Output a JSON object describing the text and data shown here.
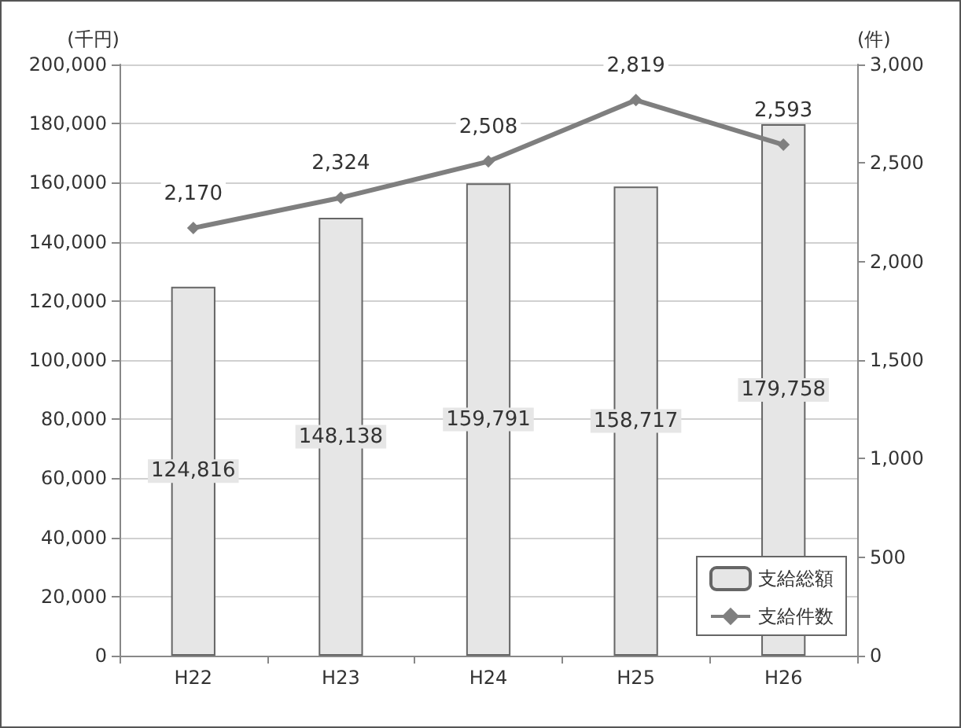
{
  "chart_data": {
    "type": "bar",
    "categories": [
      "H22",
      "H23",
      "H24",
      "H25",
      "H26"
    ],
    "ylabel": "(千円)",
    "y2label": "(件)",
    "series": [
      {
        "name": "支給総額",
        "color": "#e6e6e6",
        "values": [
          124816,
          148138,
          159791,
          158717,
          179758
        ],
        "value_labels": [
          "124,816",
          "148,138",
          "159,791",
          "158,717",
          "179,758"
        ]
      },
      {
        "type": "line",
        "name": "支給件数",
        "color": "#7f7f7f",
        "axis": "y2",
        "values": [
          2170,
          2324,
          2508,
          2819,
          2593
        ],
        "value_labels": [
          "2,170",
          "2,324",
          "2,508",
          "2,819",
          "2,593"
        ]
      }
    ],
    "ylim": [
      0,
      200000
    ],
    "yticks": [
      0,
      {
        "value": 20000,
        "label": "20,000"
      },
      {
        "value": 40000,
        "label": "40,000"
      },
      {
        "value": 60000,
        "label": "60,000"
      },
      {
        "value": 80000,
        "label": "80,000"
      },
      {
        "value": 100000,
        "label": "100,000"
      },
      {
        "value": 120000,
        "label": "120,000"
      },
      {
        "value": 140000,
        "label": "140,000"
      },
      {
        "value": 160000,
        "label": "160,000"
      },
      {
        "value": 180000,
        "label": "180,000"
      },
      {
        "value": 200000,
        "label": "200,000"
      }
    ],
    "y2lim": [
      0,
      3000
    ],
    "y2ticks": [
      0,
      500,
      {
        "value": 1000,
        "label": "1,000"
      },
      {
        "value": 1500,
        "label": "1,500"
      },
      {
        "value": 2000,
        "label": "2,000"
      },
      {
        "value": 2500,
        "label": "2,500"
      },
      {
        "value": 3000,
        "label": "3,000"
      }
    ],
    "grid": "y",
    "legend": "bottom right",
    "marker": "diamond"
  }
}
